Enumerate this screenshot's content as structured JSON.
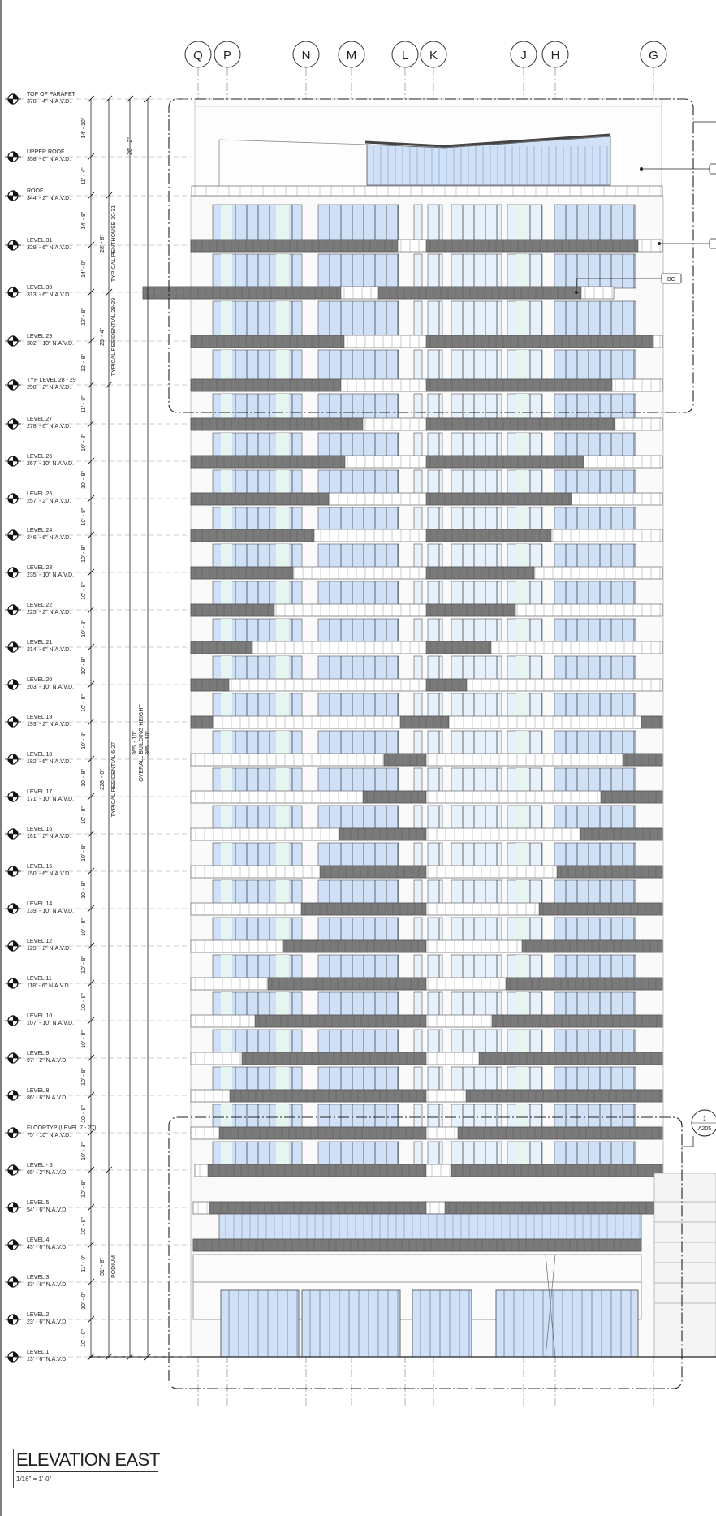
{
  "drawing": {
    "title": "ELEVATION EAST",
    "scale": "1/16\" = 1'-0\""
  },
  "gridlines": [
    "Q",
    "P",
    "N",
    "M",
    "L",
    "K",
    "J",
    "H",
    "G"
  ],
  "levels": [
    {
      "name": "TOP OF PARAPET",
      "elev": "378' - 4\" N.A.V.D."
    },
    {
      "name": "UPPER ROOF",
      "elev": "358' - 6\" N.A.V.D."
    },
    {
      "name": "ROOF",
      "elev": "344' - 2\" N.A.V.D."
    },
    {
      "name": "LEVEL 31",
      "elev": "329' - 6\" N.A.V.D."
    },
    {
      "name": "LEVEL 30",
      "elev": "313' - 6\" N.A.V.D."
    },
    {
      "name": "LEVEL 29",
      "elev": "302' - 10\" N.A.V.D."
    },
    {
      "name": "TYP LEVEL 28 - 29",
      "elev": "298' - 2\" N.A.V.D."
    },
    {
      "name": "LEVEL 27",
      "elev": "278' - 6\" N.A.V.D."
    },
    {
      "name": "LEVEL 26",
      "elev": "267' - 10\" N.A.V.D."
    },
    {
      "name": "LEVEL 25",
      "elev": "257' - 2\" N.A.V.D."
    },
    {
      "name": "LEVEL 24",
      "elev": "246' - 6\" N.A.V.D."
    },
    {
      "name": "LEVEL 23",
      "elev": "235' - 10\" N.A.V.D."
    },
    {
      "name": "LEVEL 22",
      "elev": "225' - 2\" N.A.V.D."
    },
    {
      "name": "LEVEL 21",
      "elev": "214' - 6\" N.A.V.D."
    },
    {
      "name": "LEVEL 20",
      "elev": "203' - 10\" N.A.V.D."
    },
    {
      "name": "LEVEL 19",
      "elev": "193' - 2\" N.A.V.D."
    },
    {
      "name": "LEVEL 18",
      "elev": "182' - 6\" N.A.V.D."
    },
    {
      "name": "LEVEL 17",
      "elev": "171' - 10\" N.A.V.D."
    },
    {
      "name": "LEVEL 16",
      "elev": "161' - 2\" N.A.V.D."
    },
    {
      "name": "LEVEL 15",
      "elev": "150' - 6\" N.A.V.D."
    },
    {
      "name": "LEVEL 14",
      "elev": "139' - 10\" N.A.V.D."
    },
    {
      "name": "LEVEL 12",
      "elev": "129' - 2\" N.A.V.D."
    },
    {
      "name": "LEVEL 11",
      "elev": "118' - 6\" N.A.V.D."
    },
    {
      "name": "LEVEL 10",
      "elev": "107' - 10\" N.A.V.D."
    },
    {
      "name": "LEVEL 9",
      "elev": "97' - 2\" N.A.V.D."
    },
    {
      "name": "LEVEL 8",
      "elev": "86' - 6\" N.A.V.D."
    },
    {
      "name": "FLOORTYP (LEVEL 7 - 27)",
      "elev": "75' - 10\" N.A.V.D."
    },
    {
      "name": "LEVEL - 6",
      "elev": "65' - 2\" N.A.V.D."
    },
    {
      "name": "LEVEL 5",
      "elev": "54' - 6\" N.A.V.D."
    },
    {
      "name": "LEVEL 4",
      "elev": "43' - 6\" N.A.V.D."
    },
    {
      "name": "LEVEL 3",
      "elev": "33' - 6\" N.A.V.D."
    },
    {
      "name": "LEVEL 2",
      "elev": "23' - 6\" N.A.V.D."
    },
    {
      "name": "LEVEL 1",
      "elev": "13' - 6\" N.A.V.D."
    }
  ],
  "floor_heights": [
    "14' - 10\"",
    "11' - 4\"",
    "14' - 8\"",
    "14' - 0\"",
    "12' - 8\"",
    "12' - 8\"",
    "11' - 8\"",
    "10' - 8\"",
    "10' - 8\"",
    "10' - 8\"",
    "10' - 8\"",
    "10' - 8\"",
    "10' - 8\"",
    "10' - 8\"",
    "10' - 8\"",
    "10' - 8\"",
    "10' - 8\"",
    "10' - 8\"",
    "10' - 8\"",
    "10' - 8\"",
    "10' - 8\"",
    "10' - 8\"",
    "10' - 8\"",
    "10' - 8\"",
    "10' - 8\"",
    "10' - 8\"",
    "10' - 8\"",
    "10' - 8\"",
    "10' - 8\"",
    "11' - 0\"",
    "10' - 0\"",
    "10' - 0\"",
    "10' - 0\""
  ],
  "dimensions": {
    "penthouse_label": "TYPICAL PENTHOUSE 30-31",
    "penthouse_value": "28' - 8\"",
    "upper_value": "26' - 2\"",
    "residential_28_29_label": "TYPICAL RESIDENTIAL 28-29",
    "residential_28_29_value": "25' - 4\"",
    "residential_6_27_label": "TYPICAL RESIDENTIAL 6-27",
    "residential_6_27_value": "228' - 0\"",
    "overall_label": "OVERALL BUILDING HEIGHT",
    "overall_value_1": "365' - 10\"",
    "overall_value_2": "365' - 10\"",
    "podium_label": "PODIUM",
    "podium_value": "51' - 8\""
  },
  "callouts": {
    "material_tag": "BG",
    "section_num": "1",
    "section_sheet": "A205"
  },
  "colors": {
    "line": "#333333",
    "glass": "#cfe0f7",
    "glass_light": "#e7f1fb",
    "glass_green": "#e6f5ef",
    "slab_dark": "#7a7a7a",
    "slab_light": "#ffffff"
  }
}
